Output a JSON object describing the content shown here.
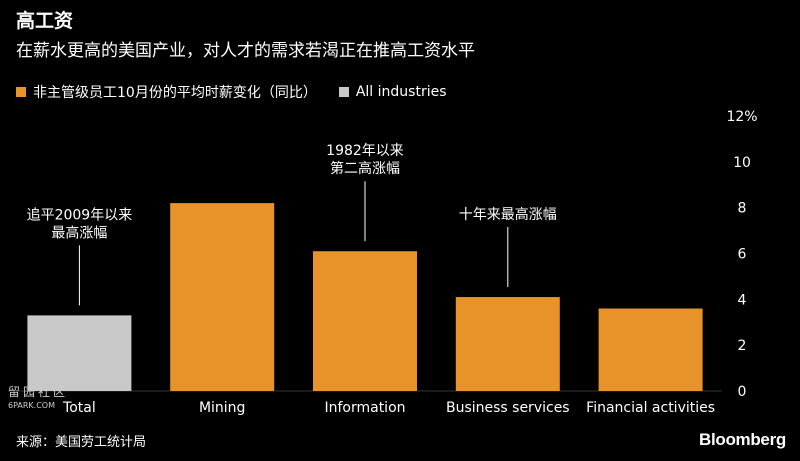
{
  "header": {
    "title": "高工资",
    "subtitle": "在薪水更高的美国产业，对人才的需求若渴正在推高工资水平"
  },
  "legend": [
    {
      "label": "非主管级员工10月份的平均时薪变化（同比）",
      "color": "#e8922a"
    },
    {
      "label": "All industries",
      "color": "#c8c8c8"
    }
  ],
  "chart_data": {
    "type": "bar",
    "categories": [
      "Total",
      "Mining",
      "Information",
      "Business services",
      "Financial activities"
    ],
    "values": [
      3.3,
      8.2,
      6.1,
      4.1,
      3.6
    ],
    "colors": [
      "#c8c8c8",
      "#e8922a",
      "#e8922a",
      "#e8922a",
      "#e8922a"
    ],
    "ylim": [
      0,
      12
    ],
    "yticks": [
      "0",
      "2",
      "4",
      "6",
      "8",
      "10",
      "12%"
    ],
    "grid": false,
    "y_axis_side": "right",
    "annotations": [
      {
        "category": "Total",
        "lines": [
          "追平2009年以来",
          "最高涨幅"
        ]
      },
      {
        "category": "Information",
        "lines": [
          "1982年以来",
          "第二高涨幅"
        ]
      },
      {
        "category": "Business services",
        "lines": [
          "十年来最高涨幅"
        ]
      }
    ]
  },
  "footer": {
    "source": "来源：美国劳工统计局",
    "brand": "Bloomberg"
  },
  "watermark": {
    "line1": "留园社区",
    "line2": "6PARK.COM"
  }
}
